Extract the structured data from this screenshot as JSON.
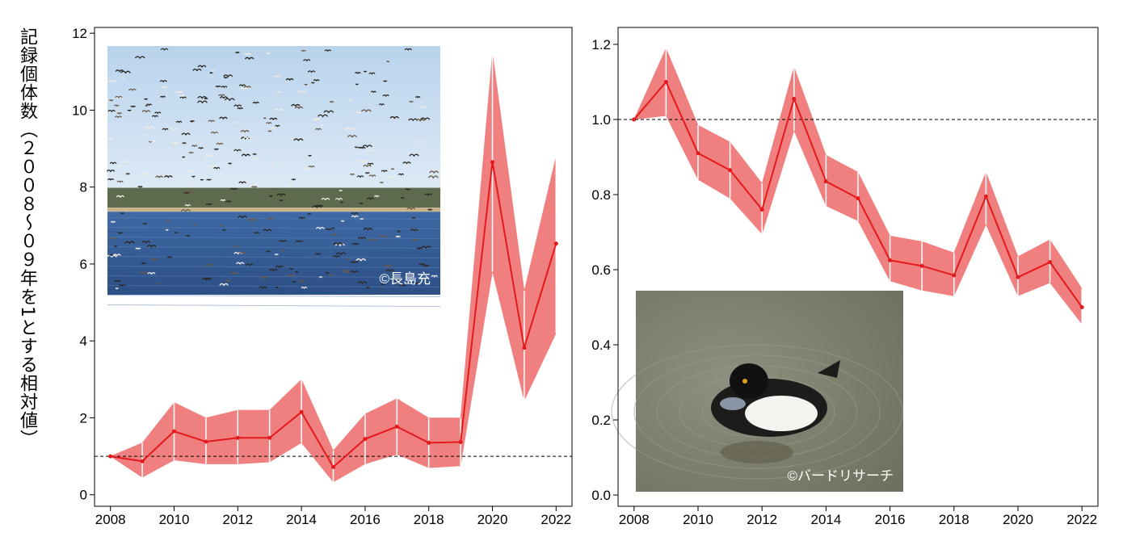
{
  "y_axis_title": "記録個体数（２００８～０９年を1とする相対値）",
  "colors": {
    "line": "#e31a1c",
    "band": "#f08080",
    "ref": "#000000"
  },
  "chart_data": [
    {
      "type": "line",
      "x": [
        2008,
        2009,
        2010,
        2011,
        2012,
        2013,
        2014,
        2015,
        2016,
        2017,
        2018,
        2019,
        2020,
        2021,
        2022
      ],
      "series": [
        {
          "values": [
            1.0,
            0.87,
            1.65,
            1.38,
            1.48,
            1.48,
            2.15,
            0.72,
            1.45,
            1.77,
            1.35,
            1.37,
            8.65,
            3.82,
            6.53
          ]
        }
      ],
      "ci_lower": [
        1.0,
        0.45,
        0.9,
        0.8,
        0.8,
        0.85,
        1.35,
        0.33,
        0.8,
        1.05,
        0.7,
        0.75,
        5.8,
        2.45,
        4.2
      ],
      "ci_upper": [
        1.0,
        1.35,
        2.4,
        2.0,
        2.2,
        2.2,
        3.0,
        1.15,
        2.1,
        2.5,
        2.0,
        2.0,
        11.5,
        5.3,
        8.8
      ],
      "reference_line": 1.0,
      "xlim": [
        2007.5,
        2022.5
      ],
      "ylim": [
        -0.3,
        12.15
      ],
      "xticks": [
        2008,
        2010,
        2012,
        2014,
        2016,
        2018,
        2020,
        2022
      ],
      "yticks": [
        0,
        2,
        4,
        6,
        8,
        10,
        12
      ],
      "photo": {
        "caption": "©長島充",
        "icon": "flock-of-geese-photo"
      }
    },
    {
      "type": "line",
      "x": [
        2008,
        2009,
        2010,
        2011,
        2012,
        2013,
        2014,
        2015,
        2016,
        2017,
        2018,
        2019,
        2020,
        2021,
        2022
      ],
      "series": [
        {
          "values": [
            1.0,
            1.1,
            0.91,
            0.865,
            0.76,
            1.055,
            0.835,
            0.79,
            0.625,
            0.61,
            0.585,
            0.795,
            0.58,
            0.62,
            0.5
          ]
        }
      ],
      "ci_lower": [
        1.0,
        1.01,
        0.84,
        0.79,
        0.695,
        0.97,
        0.77,
        0.73,
        0.57,
        0.545,
        0.53,
        0.72,
        0.53,
        0.565,
        0.455
      ],
      "ci_upper": [
        1.0,
        1.19,
        0.985,
        0.94,
        0.83,
        1.14,
        0.905,
        0.86,
        0.69,
        0.675,
        0.645,
        0.86,
        0.635,
        0.68,
        0.55
      ],
      "reference_line": 1.0,
      "xlim": [
        2007.5,
        2022.5
      ],
      "ylim": [
        -0.03,
        1.245
      ],
      "xticks": [
        2008,
        2010,
        2012,
        2014,
        2016,
        2018,
        2020,
        2022
      ],
      "yticks": [
        0.0,
        0.2,
        0.4,
        0.6,
        0.8,
        1.0,
        1.2
      ],
      "photo": {
        "caption": "©バードリサーチ",
        "icon": "tufted-duck-photo"
      }
    }
  ]
}
